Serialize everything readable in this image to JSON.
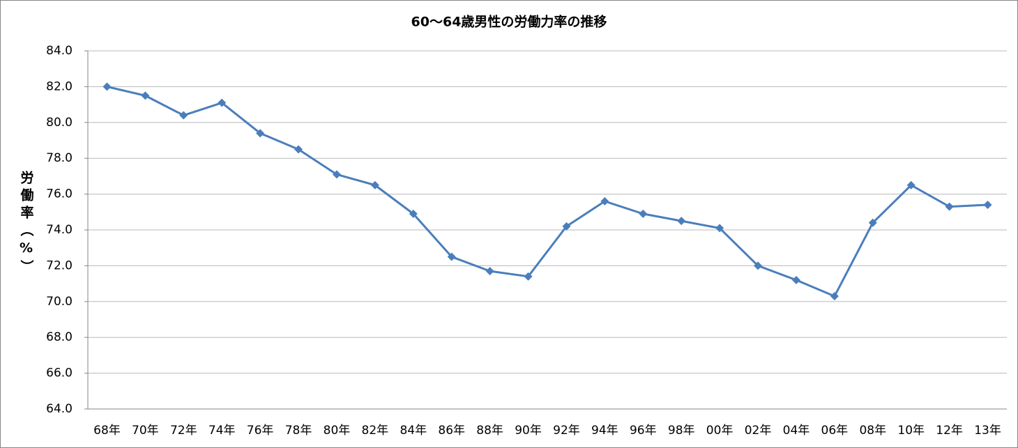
{
  "chart_data": {
    "type": "line",
    "title": "60～64歳男性の労働力率の推移",
    "y_label": "労働率（%）",
    "categories": [
      "68年",
      "70年",
      "72年",
      "74年",
      "76年",
      "78年",
      "80年",
      "82年",
      "84年",
      "86年",
      "88年",
      "90年",
      "92年",
      "94年",
      "96年",
      "98年",
      "00年",
      "02年",
      "04年",
      "06年",
      "08年",
      "10年",
      "12年",
      "13年"
    ],
    "values": [
      82.0,
      81.5,
      80.4,
      81.1,
      79.4,
      78.5,
      77.1,
      76.5,
      74.9,
      72.5,
      71.7,
      71.4,
      74.2,
      75.6,
      74.9,
      74.5,
      74.1,
      72.0,
      71.2,
      70.3,
      74.4,
      76.5,
      75.3,
      75.4
    ],
    "color": "#4a7ebb",
    "ylim": [
      64,
      84
    ],
    "yticks": [
      {
        "value": 64,
        "label": "64.0"
      },
      {
        "value": 66,
        "label": "66.0"
      },
      {
        "value": 68,
        "label": "68.0"
      },
      {
        "value": 70,
        "label": "70.0"
      },
      {
        "value": 72,
        "label": "72.0"
      },
      {
        "value": 74,
        "label": "74.0"
      },
      {
        "value": 76,
        "label": "76.0"
      },
      {
        "value": 78,
        "label": "78.0"
      },
      {
        "value": 80,
        "label": "80.0"
      },
      {
        "value": 82,
        "label": "82.0"
      },
      {
        "value": 84,
        "label": "84.0"
      }
    ],
    "grid": true,
    "marker": "diamond"
  }
}
